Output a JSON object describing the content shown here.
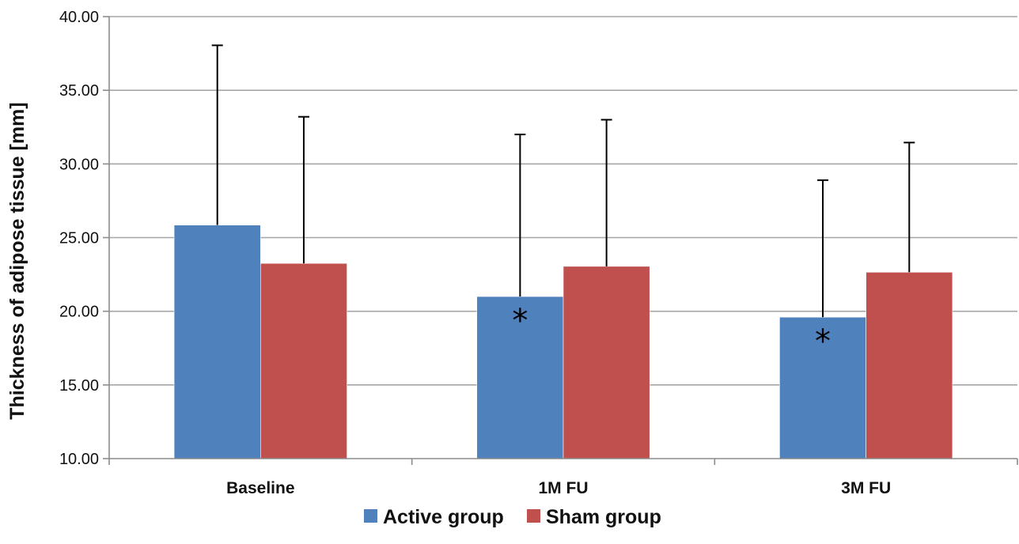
{
  "chart_data": {
    "type": "bar",
    "title": "",
    "xlabel": "",
    "ylabel": "Thickness of adipose tissue [mm]",
    "ylim": [
      10,
      40
    ],
    "yticks": [
      "10.00",
      "15.00",
      "20.00",
      "25.00",
      "30.00",
      "35.00",
      "40.00"
    ],
    "yticks_values": [
      10,
      15,
      20,
      25,
      30,
      35,
      40
    ],
    "grid": true,
    "legend_position": "bottom",
    "categories": [
      "Baseline",
      "1M FU",
      "3M FU"
    ],
    "series": [
      {
        "name": "Active group",
        "color": "#4F81BD",
        "values": [
          25.85,
          21.0,
          19.6
        ],
        "error_upper": [
          38.05,
          32.0,
          28.9
        ]
      },
      {
        "name": "Sham group",
        "color": "#C0504D",
        "values": [
          23.25,
          23.05,
          22.65
        ],
        "error_upper": [
          33.2,
          33.0,
          31.45
        ]
      }
    ],
    "annotations": [
      {
        "text": "*",
        "series": 0,
        "category": 1
      },
      {
        "text": "*",
        "series": 0,
        "category": 2
      }
    ]
  }
}
